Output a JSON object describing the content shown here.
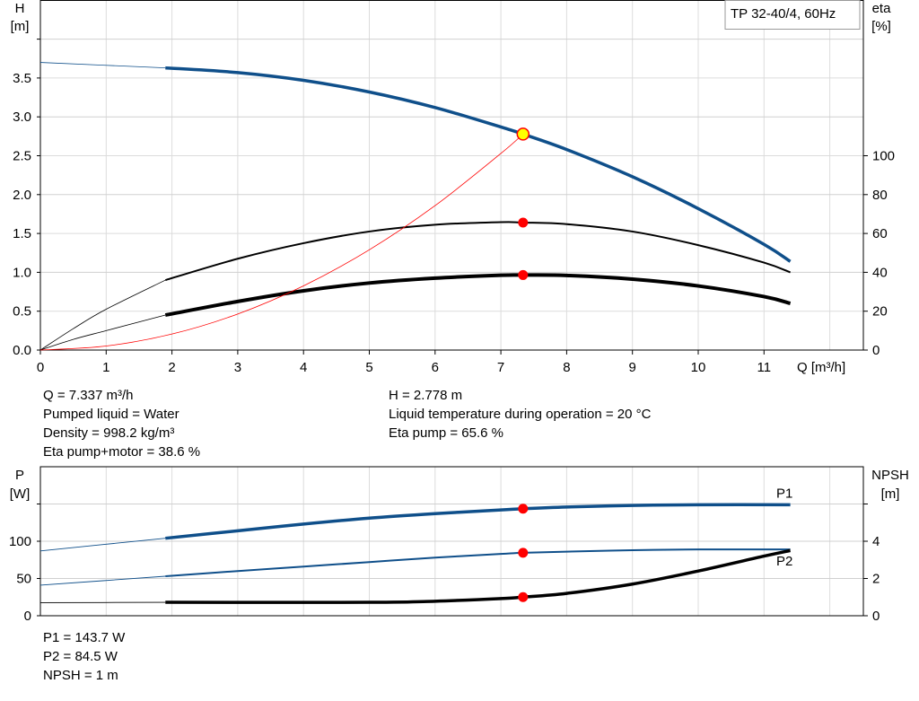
{
  "chart_data": [
    {
      "type": "line",
      "title": "TP 32-40/4, 60Hz",
      "xlabel": "Q [m³/h]",
      "ylabel_left": [
        "H",
        "[m]"
      ],
      "ylabel_right": [
        "eta",
        "[%]"
      ],
      "xlim": [
        0,
        12.5
      ],
      "ylim_left": [
        0,
        4.5
      ],
      "ylim_right": [
        0,
        180
      ],
      "xticks": [
        0,
        1,
        2,
        3,
        4,
        5,
        6,
        7,
        8,
        9,
        10,
        11
      ],
      "yticks_left": [
        "0.0",
        "0.5",
        "1.0",
        "1.5",
        "2.0",
        "2.5",
        "3.0",
        "3.5"
      ],
      "yticks_right": [
        "0",
        "20",
        "40",
        "60",
        "80",
        "100"
      ],
      "grid": true,
      "series": [
        {
          "key": "H",
          "axis": "left",
          "color": "#0f4f8a",
          "x": [
            0,
            1.9,
            3,
            4,
            5,
            6,
            7,
            7.337,
            8,
            9,
            10,
            11,
            11.4
          ],
          "y": [
            3.7,
            3.63,
            3.57,
            3.47,
            3.32,
            3.12,
            2.87,
            2.778,
            2.58,
            2.23,
            1.82,
            1.36,
            1.14
          ]
        },
        {
          "key": "eta_pump",
          "axis": "right",
          "color": "#000000",
          "x": [
            0,
            0.5,
            1,
            1.9,
            3,
            4,
            5,
            6,
            7,
            7.337,
            8,
            9,
            10,
            11,
            11.4
          ],
          "y": [
            0,
            11,
            21,
            36,
            47,
            55,
            61,
            64.5,
            65.8,
            65.6,
            64.8,
            61,
            54,
            45,
            40
          ]
        },
        {
          "key": "eta_pump_motor",
          "axis": "right",
          "color": "#000000",
          "x": [
            0,
            0.5,
            1,
            1.9,
            3,
            4,
            5,
            6,
            7,
            7.337,
            8,
            9,
            10,
            11,
            11.4
          ],
          "y": [
            0,
            5.5,
            10,
            18,
            25,
            30.5,
            34.5,
            37,
            38.5,
            38.6,
            38.4,
            36.5,
            33,
            27.5,
            24
          ]
        },
        {
          "key": "system",
          "axis": "left",
          "color": "#ff0000",
          "x": [
            0,
            1,
            2,
            3,
            4,
            5,
            6,
            7,
            7.337
          ],
          "y": [
            0,
            0.052,
            0.206,
            0.464,
            0.826,
            1.29,
            1.858,
            2.529,
            2.778
          ]
        }
      ],
      "duty_point": {
        "Q": 7.337,
        "H": 2.778,
        "eta_pump": 65.6,
        "eta_pump_motor": 38.6
      }
    },
    {
      "type": "line",
      "ylabel_left": [
        "P",
        "[W]"
      ],
      "ylabel_right": [
        "NPSH",
        "[m]"
      ],
      "xlim": [
        0,
        12.5
      ],
      "ylim_left": [
        0,
        200
      ],
      "ylim_right": [
        0,
        8
      ],
      "yticks_left": [
        "0",
        "50",
        "100"
      ],
      "yticks_right": [
        "0",
        "2",
        "4"
      ],
      "grid": true,
      "series": [
        {
          "key": "P1",
          "name": "P1",
          "axis": "left",
          "color": "#0f4f8a",
          "x": [
            0,
            1.9,
            3,
            4,
            5,
            6,
            7,
            7.337,
            8,
            9,
            10,
            11.4
          ],
          "y": [
            87,
            104,
            114,
            123,
            131,
            137,
            142,
            143.7,
            146,
            148,
            149,
            149
          ]
        },
        {
          "key": "P2",
          "name": "P2",
          "axis": "left",
          "color": "#0f4f8a",
          "x": [
            0,
            1.9,
            3,
            4,
            5,
            6,
            7,
            7.337,
            8,
            9,
            10,
            11.4
          ],
          "y": [
            41,
            53,
            60,
            66,
            72,
            78,
            83,
            84.5,
            86,
            88,
            89,
            89
          ]
        },
        {
          "key": "NPSH",
          "axis": "right",
          "color": "#000000",
          "x": [
            0,
            1.9,
            5,
            6,
            7,
            7.337,
            8,
            9,
            10,
            11,
            11.4
          ],
          "y": [
            0.7,
            0.72,
            0.72,
            0.78,
            0.92,
            1.0,
            1.2,
            1.7,
            2.4,
            3.2,
            3.5
          ]
        }
      ],
      "duty_point": {
        "Q": 7.337,
        "P1": 143.7,
        "P2": 84.5,
        "NPSH": 1
      }
    }
  ],
  "info_top": {
    "left": [
      "Q = 7.337 m³/h",
      "Pumped liquid = Water",
      "Density = 998.2 kg/m³",
      "Eta pump+motor = 38.6 %"
    ],
    "right": [
      "H = 2.778 m",
      "Liquid temperature during operation = 20 °C",
      "Eta pump = 65.6 %"
    ]
  },
  "info_bottom": [
    "P1 = 143.7 W",
    "P2 = 84.5 W",
    "NPSH = 1 m"
  ]
}
